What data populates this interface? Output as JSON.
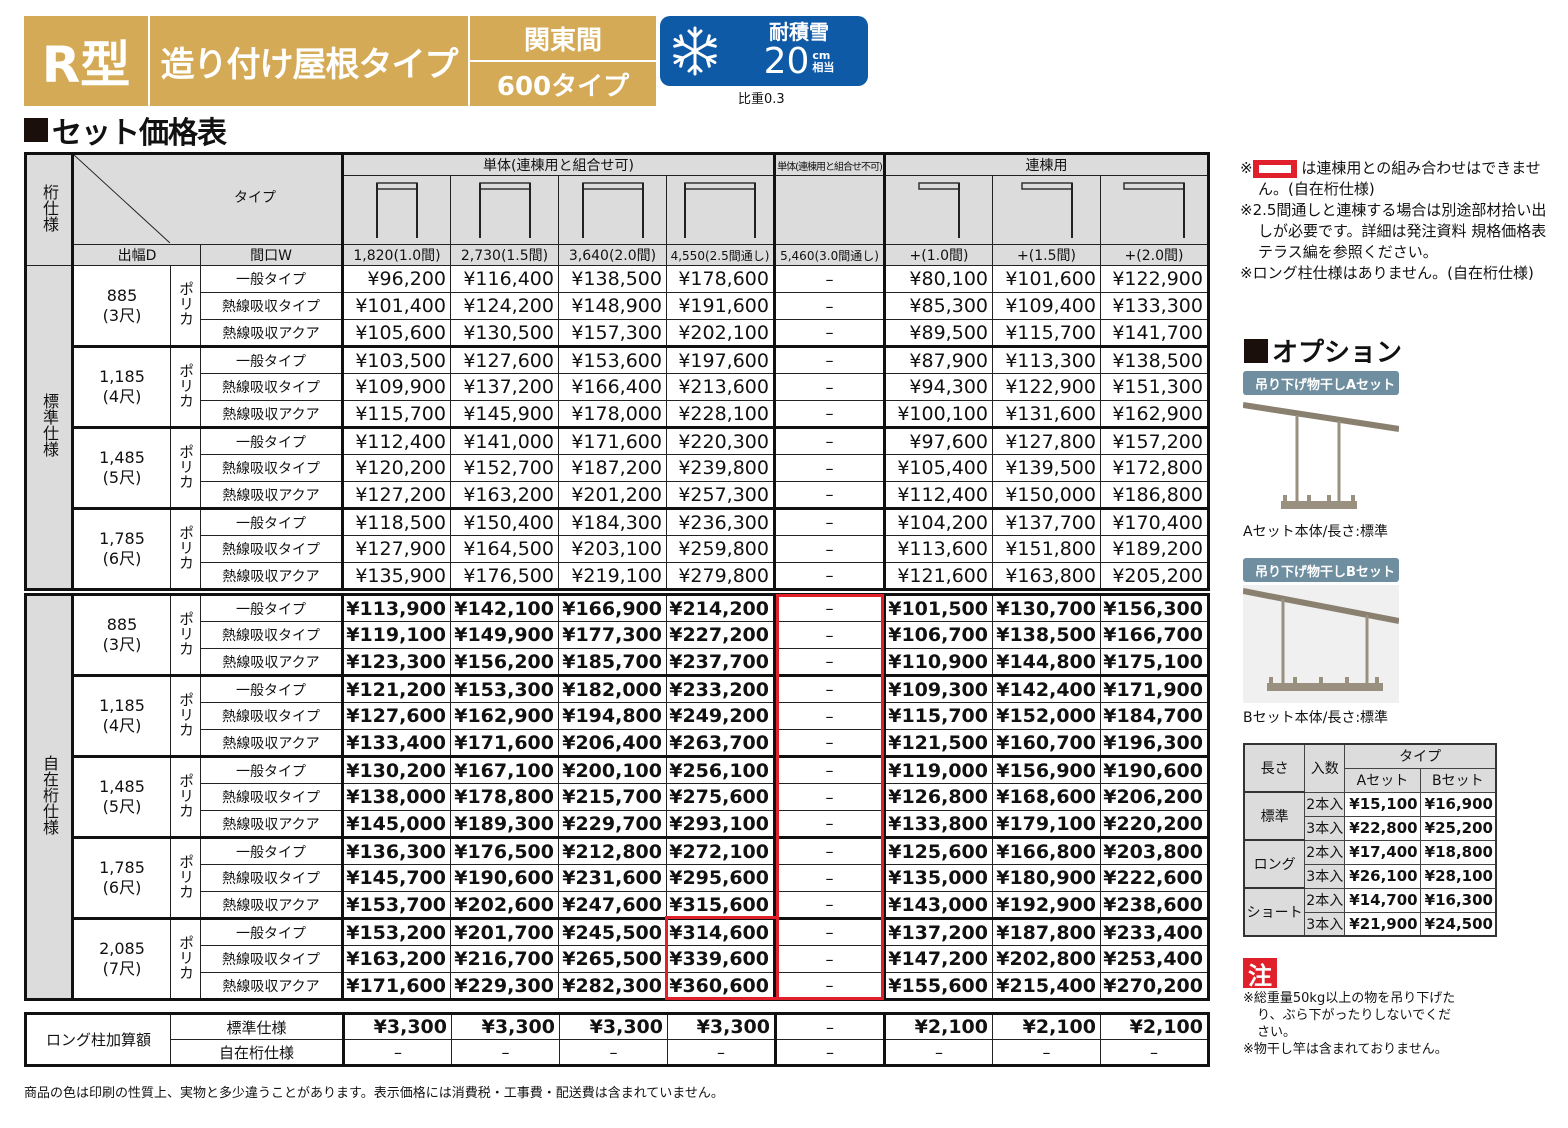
{
  "banner": {
    "model": "R型",
    "type": "造り付け屋根タイプ",
    "span_region": "関東間",
    "span_type": "600タイプ",
    "snow_label": "耐積雪",
    "snow_value": "20",
    "snow_unit_top": "cm",
    "snow_unit_bottom": "相当",
    "gravity": "比重0.3",
    "colors": {
      "gold": "#d4aa56",
      "blue": "#0f5aa6",
      "red": "#e0202a"
    }
  },
  "section_title": "セット価格表",
  "table": {
    "corner": {
      "spec": "桁仕様",
      "type": "タイプ",
      "depth": "出幅D",
      "width": "間口W"
    },
    "groups": [
      {
        "label": "単体(連棟用と組合せ可)"
      },
      {
        "label": "単体(連棟用と組合せ不可)"
      },
      {
        "label": "連棟用"
      }
    ],
    "columns": [
      "1,820(1.0間)",
      "2,730(1.5間)",
      "3,640(2.0間)",
      "4,550(2.5間通し)",
      "5,460(3.0間通し)",
      "+(1.0間)",
      "+(1.5間)",
      "+(2.0間)"
    ],
    "material": "ポリカ",
    "roof_types": [
      "一般タイプ",
      "熱線吸収タイプ",
      "熱線吸収アクア"
    ],
    "standard": {
      "label": "標準仕様",
      "blocks": [
        {
          "depth": "885",
          "shaku": "(3尺)",
          "rows": [
            [
              "¥96,200",
              "¥116,400",
              "¥138,500",
              "¥178,600",
              "–",
              "¥80,100",
              "¥101,600",
              "¥122,900"
            ],
            [
              "¥101,400",
              "¥124,200",
              "¥148,900",
              "¥191,600",
              "–",
              "¥85,300",
              "¥109,400",
              "¥133,300"
            ],
            [
              "¥105,600",
              "¥130,500",
              "¥157,300",
              "¥202,100",
              "–",
              "¥89,500",
              "¥115,700",
              "¥141,700"
            ]
          ]
        },
        {
          "depth": "1,185",
          "shaku": "(4尺)",
          "rows": [
            [
              "¥103,500",
              "¥127,600",
              "¥153,600",
              "¥197,600",
              "–",
              "¥87,900",
              "¥113,300",
              "¥138,500"
            ],
            [
              "¥109,900",
              "¥137,200",
              "¥166,400",
              "¥213,600",
              "–",
              "¥94,300",
              "¥122,900",
              "¥151,300"
            ],
            [
              "¥115,700",
              "¥145,900",
              "¥178,000",
              "¥228,100",
              "–",
              "¥100,100",
              "¥131,600",
              "¥162,900"
            ]
          ]
        },
        {
          "depth": "1,485",
          "shaku": "(5尺)",
          "rows": [
            [
              "¥112,400",
              "¥141,000",
              "¥171,600",
              "¥220,300",
              "–",
              "¥97,600",
              "¥127,800",
              "¥157,200"
            ],
            [
              "¥120,200",
              "¥152,700",
              "¥187,200",
              "¥239,800",
              "–",
              "¥105,400",
              "¥139,500",
              "¥172,800"
            ],
            [
              "¥127,200",
              "¥163,200",
              "¥201,200",
              "¥257,300",
              "–",
              "¥112,400",
              "¥150,000",
              "¥186,800"
            ]
          ]
        },
        {
          "depth": "1,785",
          "shaku": "(6尺)",
          "rows": [
            [
              "¥118,500",
              "¥150,400",
              "¥184,300",
              "¥236,300",
              "–",
              "¥104,200",
              "¥137,700",
              "¥170,400"
            ],
            [
              "¥127,900",
              "¥164,500",
              "¥203,100",
              "¥259,800",
              "–",
              "¥113,600",
              "¥151,800",
              "¥189,200"
            ],
            [
              "¥135,900",
              "¥176,500",
              "¥219,100",
              "¥279,800",
              "–",
              "¥121,600",
              "¥163,800",
              "¥205,200"
            ]
          ]
        }
      ]
    },
    "free": {
      "label": "自在桁仕様",
      "blocks": [
        {
          "depth": "885",
          "shaku": "(3尺)",
          "rows": [
            [
              "¥113,900",
              "¥142,100",
              "¥166,900",
              "¥214,200",
              "–",
              "¥101,500",
              "¥130,700",
              "¥156,300"
            ],
            [
              "¥119,100",
              "¥149,900",
              "¥177,300",
              "¥227,200",
              "–",
              "¥106,700",
              "¥138,500",
              "¥166,700"
            ],
            [
              "¥123,300",
              "¥156,200",
              "¥185,700",
              "¥237,700",
              "–",
              "¥110,900",
              "¥144,800",
              "¥175,100"
            ]
          ]
        },
        {
          "depth": "1,185",
          "shaku": "(4尺)",
          "rows": [
            [
              "¥121,200",
              "¥153,300",
              "¥182,000",
              "¥233,200",
              "–",
              "¥109,300",
              "¥142,400",
              "¥171,900"
            ],
            [
              "¥127,600",
              "¥162,900",
              "¥194,800",
              "¥249,200",
              "–",
              "¥115,700",
              "¥152,000",
              "¥184,700"
            ],
            [
              "¥133,400",
              "¥171,600",
              "¥206,400",
              "¥263,700",
              "–",
              "¥121,500",
              "¥160,700",
              "¥196,300"
            ]
          ]
        },
        {
          "depth": "1,485",
          "shaku": "(5尺)",
          "rows": [
            [
              "¥130,200",
              "¥167,100",
              "¥200,100",
              "¥256,100",
              "–",
              "¥119,000",
              "¥156,900",
              "¥190,600"
            ],
            [
              "¥138,000",
              "¥178,800",
              "¥215,700",
              "¥275,600",
              "–",
              "¥126,800",
              "¥168,600",
              "¥206,200"
            ],
            [
              "¥145,000",
              "¥189,300",
              "¥229,700",
              "¥293,100",
              "–",
              "¥133,800",
              "¥179,100",
              "¥220,200"
            ]
          ]
        },
        {
          "depth": "1,785",
          "shaku": "(6尺)",
          "rows": [
            [
              "¥136,300",
              "¥176,500",
              "¥212,800",
              "¥272,100",
              "–",
              "¥125,600",
              "¥166,800",
              "¥203,800"
            ],
            [
              "¥145,700",
              "¥190,600",
              "¥231,600",
              "¥295,600",
              "–",
              "¥135,000",
              "¥180,900",
              "¥222,600"
            ],
            [
              "¥153,700",
              "¥202,600",
              "¥247,600",
              "¥315,600",
              "–",
              "¥143,000",
              "¥192,900",
              "¥238,600"
            ]
          ]
        },
        {
          "depth": "2,085",
          "shaku": "(7尺)",
          "rows": [
            [
              "¥153,200",
              "¥201,700",
              "¥245,500",
              "¥314,600",
              "–",
              "¥137,200",
              "¥187,800",
              "¥233,400"
            ],
            [
              "¥163,200",
              "¥216,700",
              "¥265,500",
              "¥339,600",
              "–",
              "¥147,200",
              "¥202,800",
              "¥253,400"
            ],
            [
              "¥171,600",
              "¥229,300",
              "¥282,300",
              "¥360,600",
              "–",
              "¥155,600",
              "¥215,400",
              "¥270,200"
            ]
          ]
        }
      ]
    },
    "long_post": {
      "label": "ロング柱加算額",
      "rows": [
        {
          "sub": "標準仕様",
          "values": [
            "¥3,300",
            "¥3,300",
            "¥3,300",
            "¥3,300",
            "–",
            "¥2,100",
            "¥2,100",
            "¥2,100"
          ]
        },
        {
          "sub": "自在桁仕様",
          "values": [
            "–",
            "–",
            "–",
            "–",
            "–",
            "–",
            "–",
            "–"
          ]
        }
      ]
    }
  },
  "footnote": "商品の色は印刷の性質上、実物と多少違うことがあります。表示価格には消費税・工事費・配送費は含まれていません。",
  "notes": [
    {
      "prefix": "※",
      "text": "は連棟用との組み合わせはできません。(自在桁仕様)",
      "has_red_mark": true
    },
    {
      "prefix": "※",
      "text": "2.5間通しと連棟する場合は別途部材拾い出しが必要です。詳細は発注資料 規格価格表 テラス編を参照ください。"
    },
    {
      "prefix": "※",
      "text": "ロング柱仕様はありません。(自在桁仕様)"
    }
  ],
  "options": {
    "title": "オプション",
    "items": [
      {
        "label": "吊り下げ物干しAセット",
        "caption": "Aセット本体/長さ:標準"
      },
      {
        "label": "吊り下げ物干しBセット",
        "caption": "Bセット本体/長さ:標準"
      }
    ],
    "table": {
      "headers": {
        "length": "長さ",
        "count": "入数",
        "type": "タイプ",
        "a": "Aセット",
        "b": "Bセット"
      },
      "rows": [
        {
          "length": "標準",
          "count": "2本入",
          "a": "¥15,100",
          "b": "¥16,900"
        },
        {
          "length": "標準",
          "count": "3本入",
          "a": "¥22,800",
          "b": "¥25,200"
        },
        {
          "length": "ロング",
          "count": "2本入",
          "a": "¥17,400",
          "b": "¥18,800"
        },
        {
          "length": "ロング",
          "count": "3本入",
          "a": "¥26,100",
          "b": "¥28,100"
        },
        {
          "length": "ショート",
          "count": "2本入",
          "a": "¥14,700",
          "b": "¥16,300"
        },
        {
          "length": "ショート",
          "count": "3本入",
          "a": "¥21,900",
          "b": "¥24,500"
        }
      ]
    },
    "warning_label": "注",
    "warnings": [
      "※総重量50kg以上の物を吊り下げたり、ぶら下がったりしないでください。",
      "※物干し竿は含まれておりません。"
    ]
  }
}
